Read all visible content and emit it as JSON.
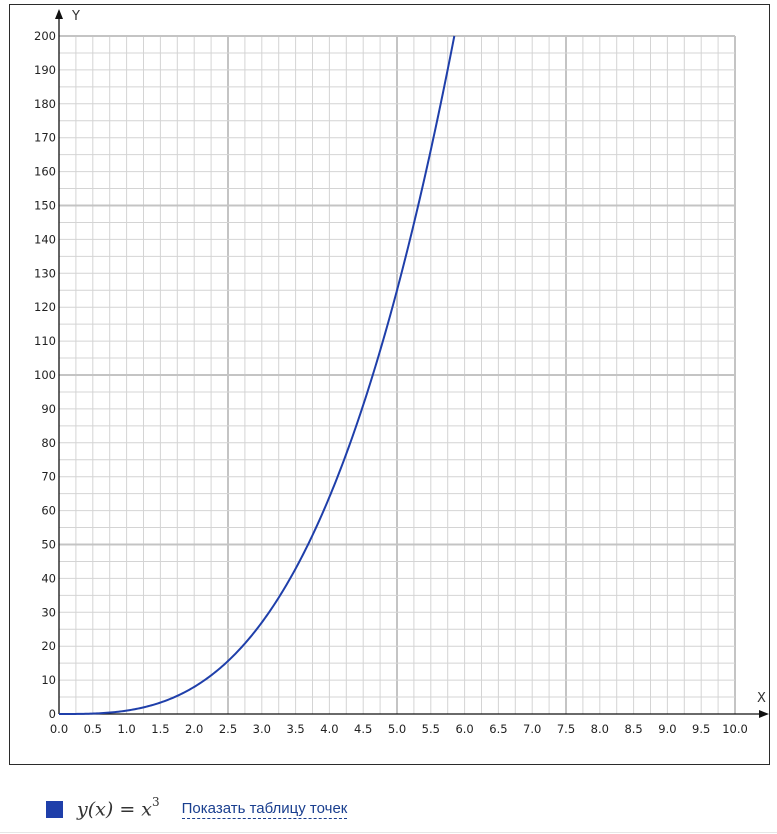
{
  "chart_data": {
    "type": "line",
    "xlabel": "X",
    "ylabel": "Y",
    "xlim": [
      0,
      10
    ],
    "ylim": [
      0,
      200
    ],
    "x_ticks": [
      "0.0",
      "0.5",
      "1.0",
      "1.5",
      "2.0",
      "2.5",
      "3.0",
      "3.5",
      "4.0",
      "4.5",
      "5.0",
      "5.5",
      "6.0",
      "6.5",
      "7.0",
      "7.5",
      "8.0",
      "8.5",
      "9.0",
      "9.5",
      "10.0"
    ],
    "y_ticks": [
      "0",
      "10",
      "20",
      "30",
      "40",
      "50",
      "60",
      "70",
      "80",
      "90",
      "100",
      "110",
      "120",
      "130",
      "140",
      "150",
      "160",
      "170",
      "180",
      "190",
      "200"
    ],
    "grid": true,
    "colors": {
      "series": "#1f3faa",
      "grid": "#d4d4d4",
      "grid_major": "#c4c4c4",
      "axis": "#111111"
    },
    "series": [
      {
        "function": "x^3",
        "x": [
          0,
          0.5,
          1,
          1.5,
          2,
          2.5,
          3,
          3.5,
          4,
          4.5,
          5,
          5.5,
          5.848
        ],
        "values": [
          0,
          0.125,
          1,
          3.375,
          8,
          15.625,
          27,
          42.875,
          64,
          91.125,
          125,
          166.375,
          200
        ]
      }
    ]
  },
  "legend": {
    "swatch_color": "#1f3faa",
    "formula_lhs": "y(x) = x",
    "formula_exp": "3",
    "link_label": "Показать таблицу точек"
  }
}
